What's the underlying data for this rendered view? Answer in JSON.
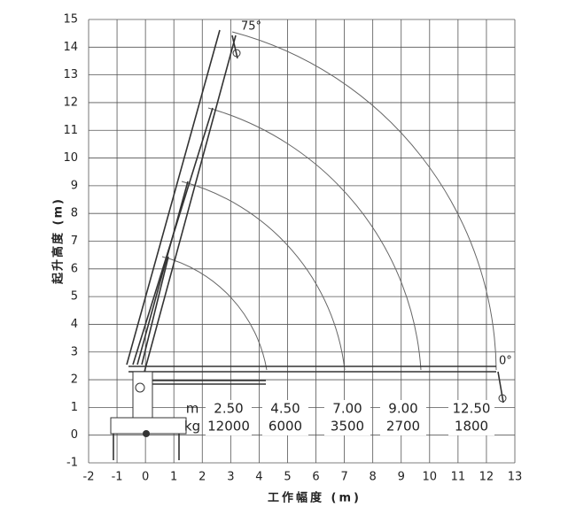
{
  "chart_data": {
    "type": "crane-chart",
    "xlabel": "工作幅度 (m)",
    "ylabel": "起升高度 (m)",
    "xlim": [
      -2,
      13
    ],
    "ylim": [
      -1,
      15
    ],
    "xticks": [
      -2,
      -1,
      0,
      1,
      2,
      3,
      4,
      5,
      6,
      7,
      8,
      9,
      10,
      11,
      12,
      13
    ],
    "yticks": [
      -1,
      0,
      1,
      2,
      3,
      4,
      5,
      6,
      7,
      8,
      9,
      10,
      11,
      12,
      13,
      14,
      15
    ],
    "grid": true,
    "annotations": [
      "75°",
      "0°"
    ],
    "load_table": {
      "row_labels": [
        "m",
        "kg"
      ],
      "radius": [
        "2.50",
        "4.50",
        "7.00",
        "9.00",
        "12.50"
      ],
      "load": [
        12000,
        6000,
        3500,
        2700,
        1800
      ]
    }
  }
}
